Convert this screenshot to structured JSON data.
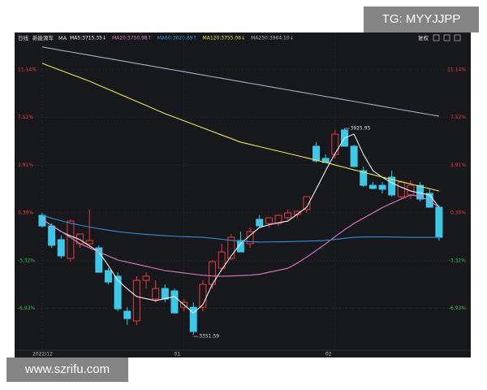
{
  "chart_data": {
    "type": "candlestick",
    "period": "日线",
    "symbol": "新能源车",
    "indicator": "MA",
    "adjust": "复权",
    "categories": [
      "2022/12",
      null,
      null,
      null,
      null,
      null,
      null,
      null,
      null,
      null,
      null,
      null,
      null,
      null,
      null,
      "01",
      null,
      null,
      null,
      null,
      null,
      null,
      null,
      null,
      null,
      null,
      null,
      null,
      null,
      null,
      null,
      "02",
      null,
      null,
      null,
      null,
      null,
      null,
      null,
      null,
      null,
      null,
      null
    ],
    "candles": {
      "open": [
        0.12,
        -0.69,
        -1.73,
        -3.15,
        -2.04,
        -2.04,
        -2.35,
        -4.07,
        -4.5,
        -7.15,
        -7.89,
        -4.81,
        -6.23,
        -5.43,
        -5.61,
        -6.85,
        -6.85,
        -6.85,
        -5.12,
        -3.89,
        -3.15,
        -1.79,
        -2.04,
        -0.19,
        -0.5,
        -0.5,
        -0.07,
        0.18,
        0.55,
        5.35,
        4.43,
        4.73,
        6.58,
        5.35,
        3.5,
        2.39,
        2.39,
        3.01,
        1.53,
        1.66,
        2.39,
        1.78,
        0.73
      ],
      "high": [
        0.3,
        -0.5,
        -1.42,
        -0.19,
        -1.3,
        0.55,
        -2.16,
        -3.89,
        -4.2,
        -6.85,
        -4.5,
        -4.2,
        -4.81,
        -5.12,
        -5.43,
        -6.23,
        -6.48,
        -4.81,
        -3.27,
        -2.04,
        -1.3,
        -1.12,
        -0.81,
        0.12,
        -0.07,
        0.18,
        0.55,
        0.42,
        1.53,
        5.66,
        4.73,
        6.58,
        6.7,
        5.47,
        3.81,
        2.64,
        2.64,
        3.5,
        2.76,
        2.76,
        2.64,
        2.15,
        0.85
      ],
      "low": [
        -0.81,
        -2.35,
        -3.15,
        -3.4,
        -2.35,
        -2.16,
        -4.2,
        -5.12,
        -7.15,
        -8.2,
        -8.2,
        -5.43,
        -6.48,
        -6.48,
        -7.28,
        -7.15,
        -8.94,
        -7.15,
        -5.43,
        -4.07,
        -3.27,
        -2.66,
        -2.35,
        -0.81,
        -0.81,
        -0.69,
        -0.19,
        -0.07,
        0.3,
        4.12,
        4.12,
        4.43,
        5.35,
        3.81,
        2.27,
        2.09,
        1.78,
        1.53,
        1.35,
        1.35,
        1.16,
        0.73,
        -1.79
      ],
      "close": [
        -0.69,
        -2.16,
        -2.96,
        -0.32,
        -1.3,
        -1.79,
        -4.2,
        -4.94,
        -6.97,
        -7.71,
        -4.81,
        -4.5,
        -5.43,
        -6.23,
        -7.28,
        -6.48,
        -8.69,
        -5.12,
        -3.4,
        -2.66,
        -1.55,
        -2.66,
        -1.12,
        -0.69,
        -0.07,
        0.12,
        0.3,
        0.42,
        1.53,
        4.24,
        4.12,
        6.27,
        5.35,
        3.81,
        2.39,
        2.15,
        2.09,
        1.66,
        2.64,
        2.39,
        1.35,
        0.73,
        -1.55
      ]
    },
    "up_color": "#e8383d",
    "down_color": "#3cc8e8",
    "series": [
      {
        "name": "MA5:3715.35↓",
        "color": "#f2f2f2",
        "values": [
          -0.19,
          -0.65,
          -1.12,
          -1.45,
          -1.73,
          -2.2,
          -2.66,
          -3.7,
          -4.81,
          -5.45,
          -6.04,
          -6.2,
          -6.35,
          -6.2,
          -6.04,
          -6.66,
          -7.28,
          -6.66,
          -5.12,
          -4.0,
          -2.96,
          -2.04,
          -1.4,
          -0.81,
          -0.6,
          -0.45,
          -0.32,
          0.2,
          0.73,
          2.1,
          3.5,
          4.8,
          5.97,
          6.27,
          4.73,
          3.5,
          3.0,
          2.58,
          2.25,
          1.96,
          1.8,
          1.66,
          0.73
        ]
      },
      {
        "name": "MA20:3750.98↑",
        "color": "#d77bc4",
        "values": [
          -0.19,
          -0.65,
          -1.1,
          -1.57,
          -2.04,
          -2.35,
          -2.66,
          -2.96,
          -3.27,
          -3.43,
          -3.59,
          -3.75,
          -3.91,
          -4.07,
          -4.16,
          -4.25,
          -4.34,
          -4.43,
          -4.48,
          -4.5,
          -4.48,
          -4.45,
          -4.42,
          -4.35,
          -4.2,
          -4.05,
          -3.89,
          -3.5,
          -3.05,
          -2.55,
          -2.04,
          -1.5,
          -0.98,
          -0.5,
          -0.1,
          0.3,
          0.7,
          1.04,
          1.35,
          1.66,
          1.55,
          1.2,
          0.73
        ]
      },
      {
        "name": "MA60:3620.89↑",
        "color": "#2f8fd8",
        "values": [
          0.12,
          -0.1,
          -0.3,
          -0.48,
          -0.63,
          -0.77,
          -0.9,
          -1.01,
          -1.12,
          -1.2,
          -1.27,
          -1.33,
          -1.38,
          -1.43,
          -1.47,
          -1.5,
          -1.53,
          -1.55,
          -1.62,
          -1.7,
          -1.78,
          -1.84,
          -1.88,
          -1.91,
          -1.9,
          -1.89,
          -1.88,
          -1.86,
          -1.84,
          -1.82,
          -1.79,
          -1.71,
          -1.63,
          -1.55,
          -1.53,
          -1.52,
          -1.52,
          -1.53,
          -1.54,
          -1.55,
          -1.55,
          -1.55,
          -1.55
        ]
      },
      {
        "name": "MA120:3755.06↓",
        "color": "#e6e64a",
        "values": [
          11.63,
          11.36,
          11.09,
          10.82,
          10.55,
          10.28,
          9.97,
          9.67,
          9.36,
          9.05,
          8.74,
          8.44,
          8.13,
          7.82,
          7.55,
          7.28,
          7.01,
          6.74,
          6.47,
          6.2,
          5.93,
          5.66,
          5.49,
          5.32,
          5.15,
          4.98,
          4.81,
          4.64,
          4.47,
          4.3,
          4.12,
          3.93,
          3.75,
          3.56,
          3.38,
          3.19,
          3.01,
          2.84,
          2.66,
          2.49,
          2.31,
          2.14,
          1.96
        ]
      },
      {
        "name": "MA250:3964.10↓",
        "color": "#a9adc0",
        "values": [
          12.87,
          12.75,
          12.62,
          12.5,
          12.37,
          12.25,
          12.12,
          12.0,
          11.87,
          11.75,
          11.62,
          11.5,
          11.37,
          11.25,
          11.12,
          11.0,
          10.87,
          10.75,
          10.62,
          10.5,
          10.37,
          10.25,
          10.12,
          10.0,
          9.87,
          9.75,
          9.62,
          9.5,
          9.37,
          9.25,
          9.12,
          9.0,
          8.87,
          8.75,
          8.62,
          8.5,
          8.37,
          8.25,
          8.12,
          8.0,
          7.87,
          7.75,
          7.63
        ]
      }
    ],
    "ylim": [
      -10,
      13.23
    ],
    "yticks": [
      {
        "value": 11.14,
        "label": "11.14%"
      },
      {
        "value": 7.52,
        "label": "7.52%"
      },
      {
        "value": 3.91,
        "label": "3.91%"
      },
      {
        "value": 0.3,
        "label": "0.30%"
      },
      {
        "value": -3.32,
        "label": "-3.32%"
      },
      {
        "value": -6.93,
        "label": "-6.93%"
      }
    ],
    "annotations": [
      "3925.95",
      "3351.59"
    ]
  },
  "overlay": {
    "top_right": "TG: MYYJJPP",
    "bottom_left": "www.szrifu.com"
  }
}
